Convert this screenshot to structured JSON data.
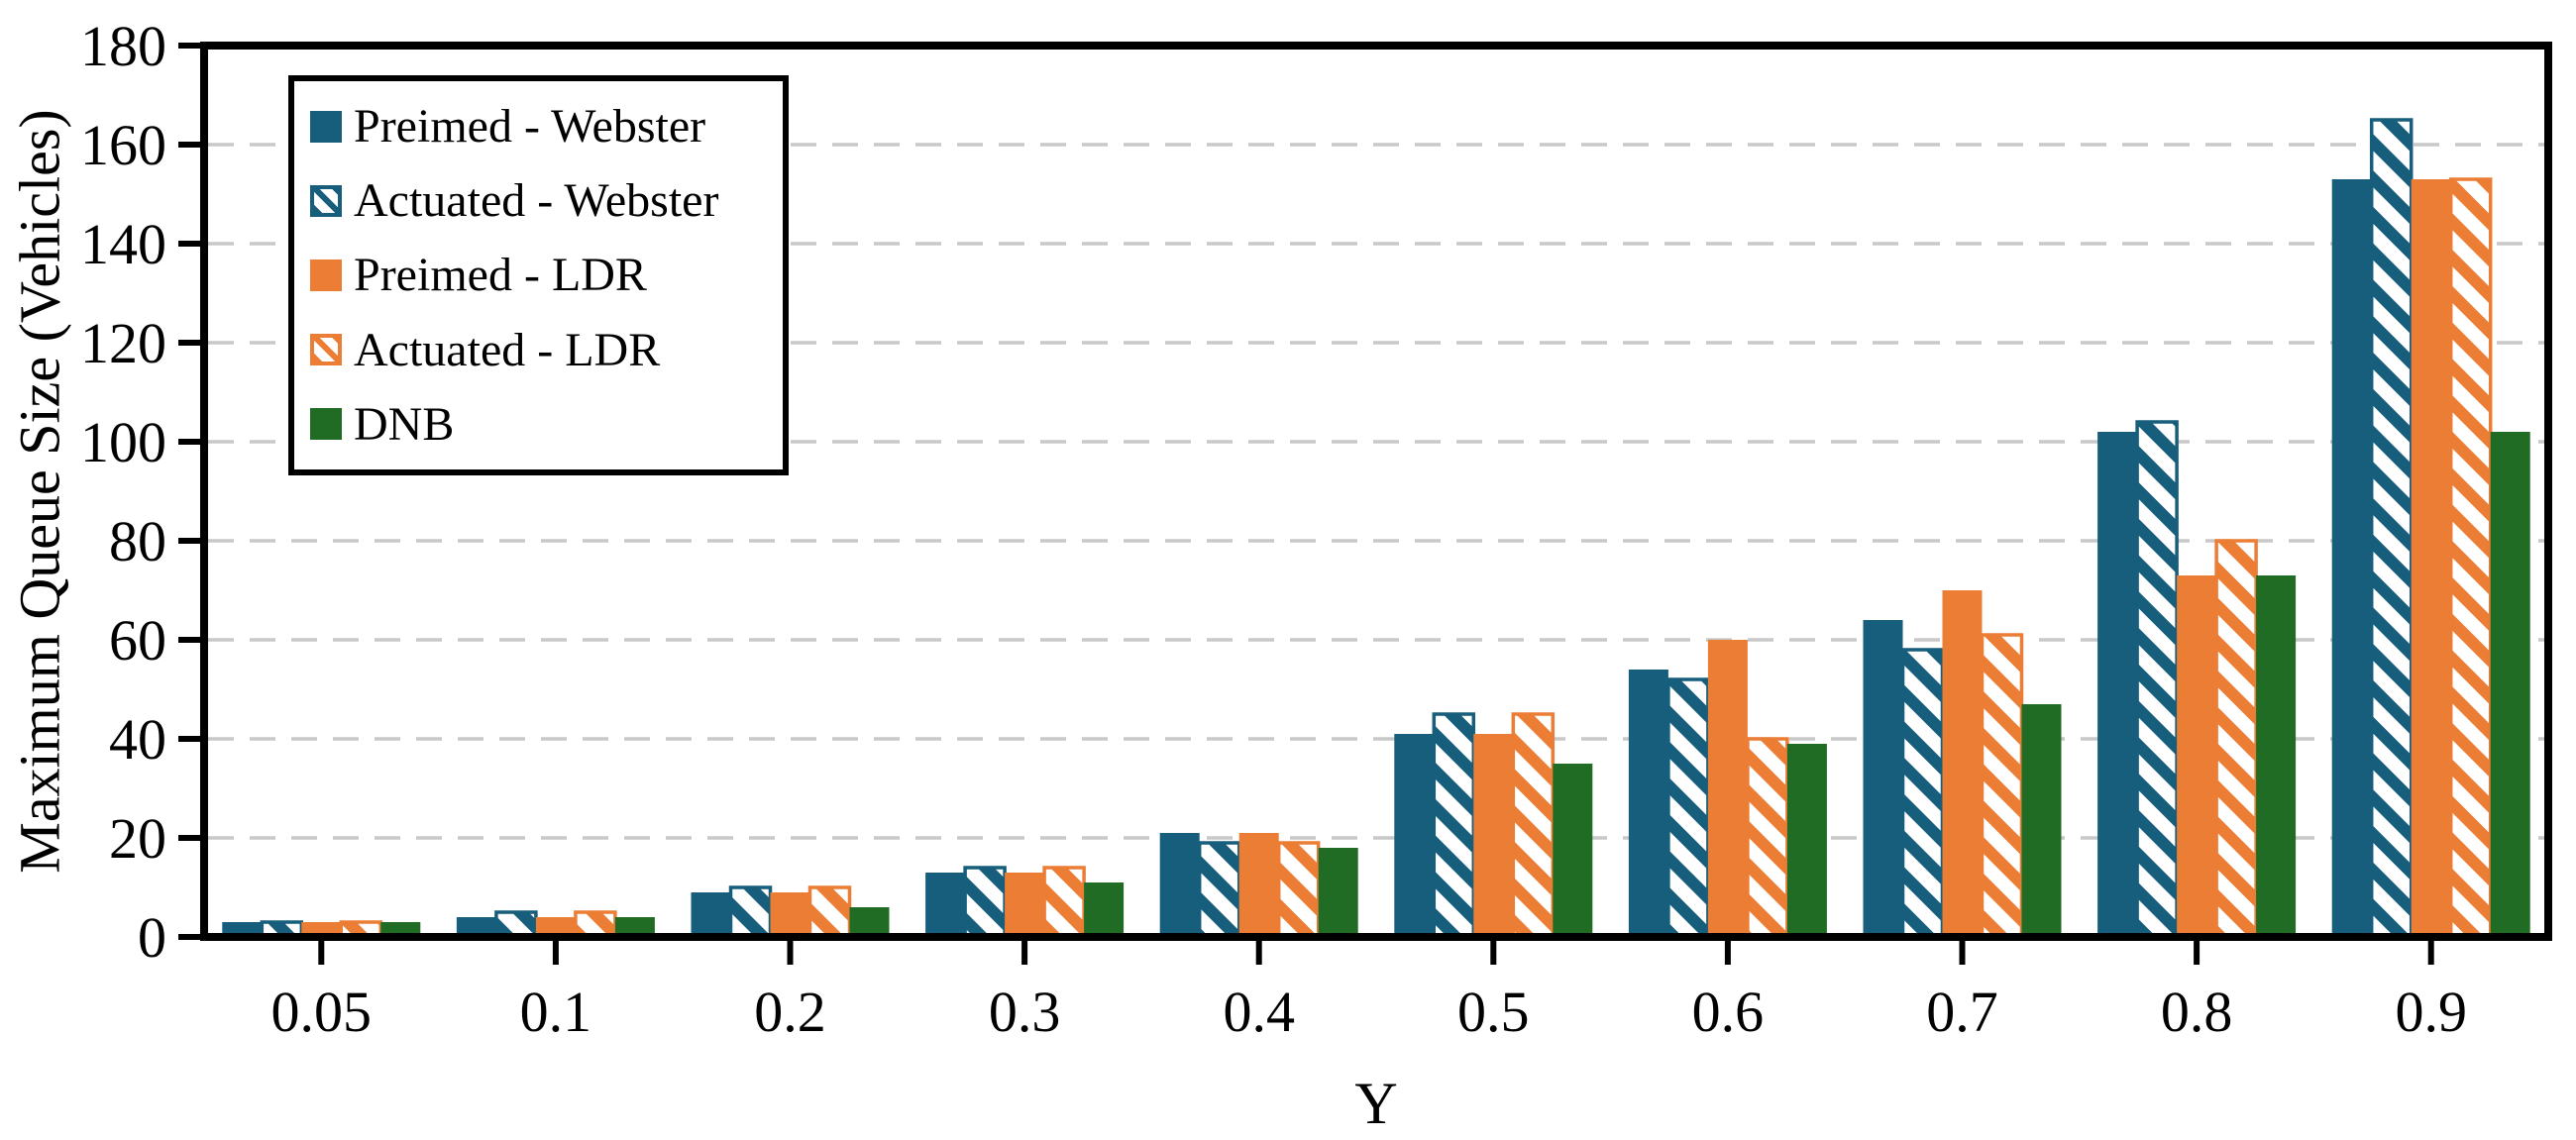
{
  "chart_data": {
    "type": "bar",
    "title": "",
    "xlabel": "Y",
    "ylabel": "Maximum Queue Size (Vehicles)",
    "categories": [
      "0.05",
      "0.1",
      "0.2",
      "0.3",
      "0.4",
      "0.5",
      "0.6",
      "0.7",
      "0.8",
      "0.9"
    ],
    "ylim": [
      0,
      180
    ],
    "ytick_step": 20,
    "yticks": [
      0,
      20,
      40,
      60,
      80,
      100,
      120,
      140,
      160,
      180
    ],
    "grid": "horizontal-dashed",
    "gridline_color": "#c8c8c8",
    "frame_color": "#000000",
    "legend_position": "upper-left-inside",
    "series": [
      {
        "name": "Preimed - Webster",
        "color": "#175E7C",
        "hatch": false,
        "values": [
          3,
          4,
          9,
          13,
          21,
          41,
          54,
          64,
          102,
          153
        ]
      },
      {
        "name": "Actuated - Webster",
        "color": "#175E7C",
        "hatch": true,
        "values": [
          3,
          5,
          10,
          14,
          19,
          45,
          52,
          58,
          104,
          165
        ]
      },
      {
        "name": "Preimed - LDR",
        "color": "#EB7D35",
        "hatch": false,
        "values": [
          3,
          4,
          9,
          13,
          21,
          41,
          60,
          70,
          73,
          153
        ]
      },
      {
        "name": "Actuated - LDR",
        "color": "#EB7D35",
        "hatch": true,
        "values": [
          3,
          5,
          10,
          14,
          19,
          45,
          40,
          61,
          80,
          153
        ]
      },
      {
        "name": "DNB",
        "color": "#216C24",
        "hatch": false,
        "values": [
          3,
          4,
          6,
          11,
          18,
          35,
          39,
          47,
          73,
          102
        ]
      }
    ]
  }
}
